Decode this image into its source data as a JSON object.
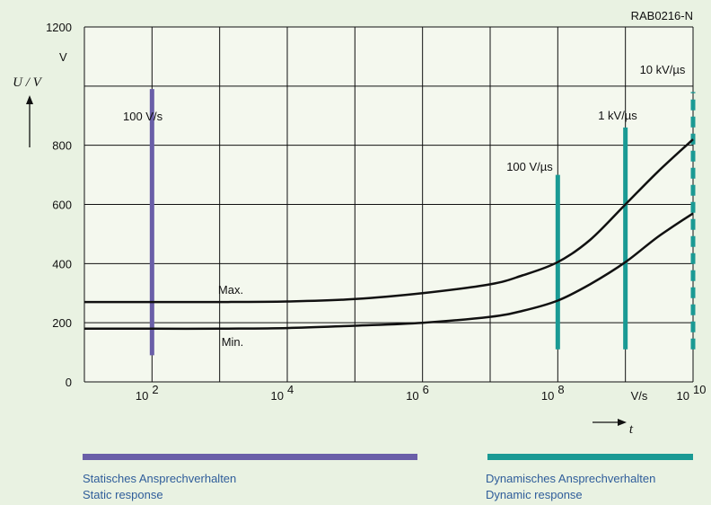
{
  "chart_data": {
    "type": "line",
    "figure_id": "RAB0216-N",
    "ylabel": "U / V",
    "yunit": "V",
    "xlabel": "t",
    "xunit": "V/s",
    "xscale": "log",
    "xlim": [
      10,
      10000000000
    ],
    "ylim": [
      0,
      1200
    ],
    "grid": true,
    "yticks": [
      "0",
      "200",
      "400",
      "600",
      "800",
      "1200"
    ],
    "xticks": [
      {
        "base": "10",
        "exp": "2",
        "value": 100
      },
      {
        "base": "10",
        "exp": "4",
        "value": 10000
      },
      {
        "base": "10",
        "exp": "6",
        "value": 1000000
      },
      {
        "base": "10",
        "exp": "8",
        "value": 100000000
      },
      {
        "base": "10",
        "exp": "10",
        "value": 10000000000
      }
    ],
    "series": [
      {
        "name": "Max.",
        "color": "#111111",
        "x": [
          10,
          100,
          1000,
          10000,
          100000,
          1000000,
          10000000,
          30000000,
          100000000,
          300000000,
          1000000000,
          3000000000,
          10000000000
        ],
        "y": [
          270,
          270,
          270,
          272,
          280,
          300,
          330,
          360,
          405,
          480,
          600,
          710,
          820
        ]
      },
      {
        "name": "Min.",
        "color": "#111111",
        "x": [
          10,
          100,
          1000,
          10000,
          100000,
          1000000,
          10000000,
          30000000,
          100000000,
          300000000,
          1000000000,
          3000000000,
          10000000000
        ],
        "y": [
          180,
          180,
          180,
          182,
          190,
          200,
          220,
          240,
          275,
          330,
          405,
          490,
          570
        ]
      }
    ],
    "rate_markers": [
      {
        "label": "100 V/s",
        "x": 100,
        "y_from": 90,
        "y_to": 990,
        "color": "#6a5fa8",
        "dashed": false
      },
      {
        "label": "100 V/µs",
        "x": 100000000,
        "y_from": 110,
        "y_to": 700,
        "color": "#1a9a94",
        "dashed": false
      },
      {
        "label": "1 kV/µs",
        "x": 1000000000,
        "y_from": 110,
        "y_to": 860,
        "color": "#1a9a94",
        "dashed": false
      },
      {
        "label": "10 kV/µs",
        "x": 10000000000,
        "y_from": 110,
        "y_to": 980,
        "color": "#1a9a94",
        "dashed": true
      }
    ],
    "legend": [
      {
        "color": "#6a5fa8",
        "x_from": 1,
        "x_to": 1800000,
        "label_de": "Statisches Ansprechverhalten",
        "label_en": "Static response"
      },
      {
        "color": "#1a9a94",
        "x_from": 60000000,
        "x_to": 10000000000,
        "label_de": "Dynamisches Ansprechverhalten",
        "label_en": "Dynamic response"
      }
    ]
  },
  "colors": {
    "background": "#e9f2e2",
    "plot": "#f4f8ee",
    "grid": "#111111",
    "curve": "#111111",
    "legend_text": "#2f5d9a"
  }
}
